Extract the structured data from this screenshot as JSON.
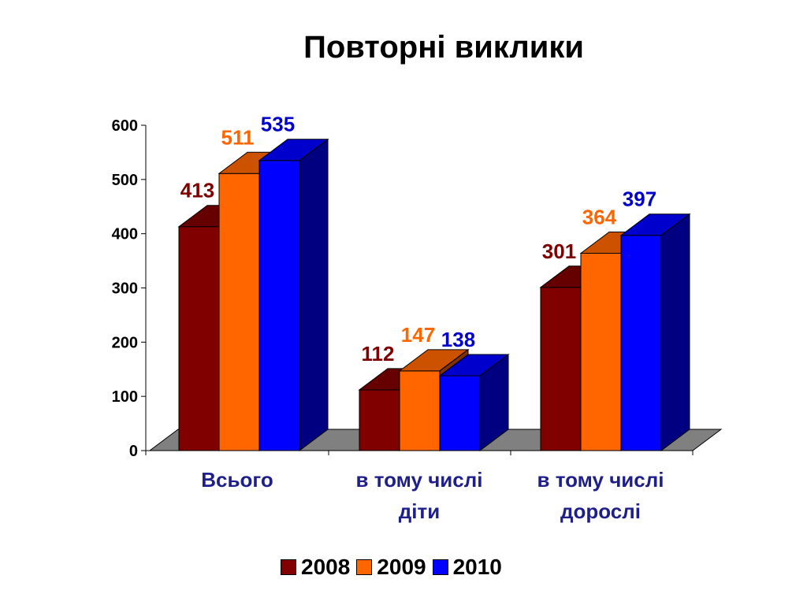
{
  "chart_data": {
    "type": "bar",
    "title": "Повторні виклики",
    "categories": [
      [
        "Всього"
      ],
      [
        "в тому числі",
        "діти"
      ],
      [
        "в тому числі",
        "дорослі"
      ]
    ],
    "series": [
      {
        "name": "2008",
        "values": [
          413,
          112,
          301
        ],
        "color": "#800000",
        "label_color": "#800000"
      },
      {
        "name": "2009",
        "values": [
          511,
          147,
          364
        ],
        "color": "#ff6600",
        "label_color": "#ff6600"
      },
      {
        "name": "2010",
        "values": [
          535,
          138,
          397
        ],
        "color": "#0000ff",
        "label_color": "#0000cc"
      }
    ],
    "ylim": [
      0,
      600
    ],
    "yticks": [
      "0",
      "100",
      "200",
      "300",
      "400",
      "500",
      "600"
    ],
    "grid": false,
    "legend_position": "bottom",
    "style": "3d-column"
  }
}
